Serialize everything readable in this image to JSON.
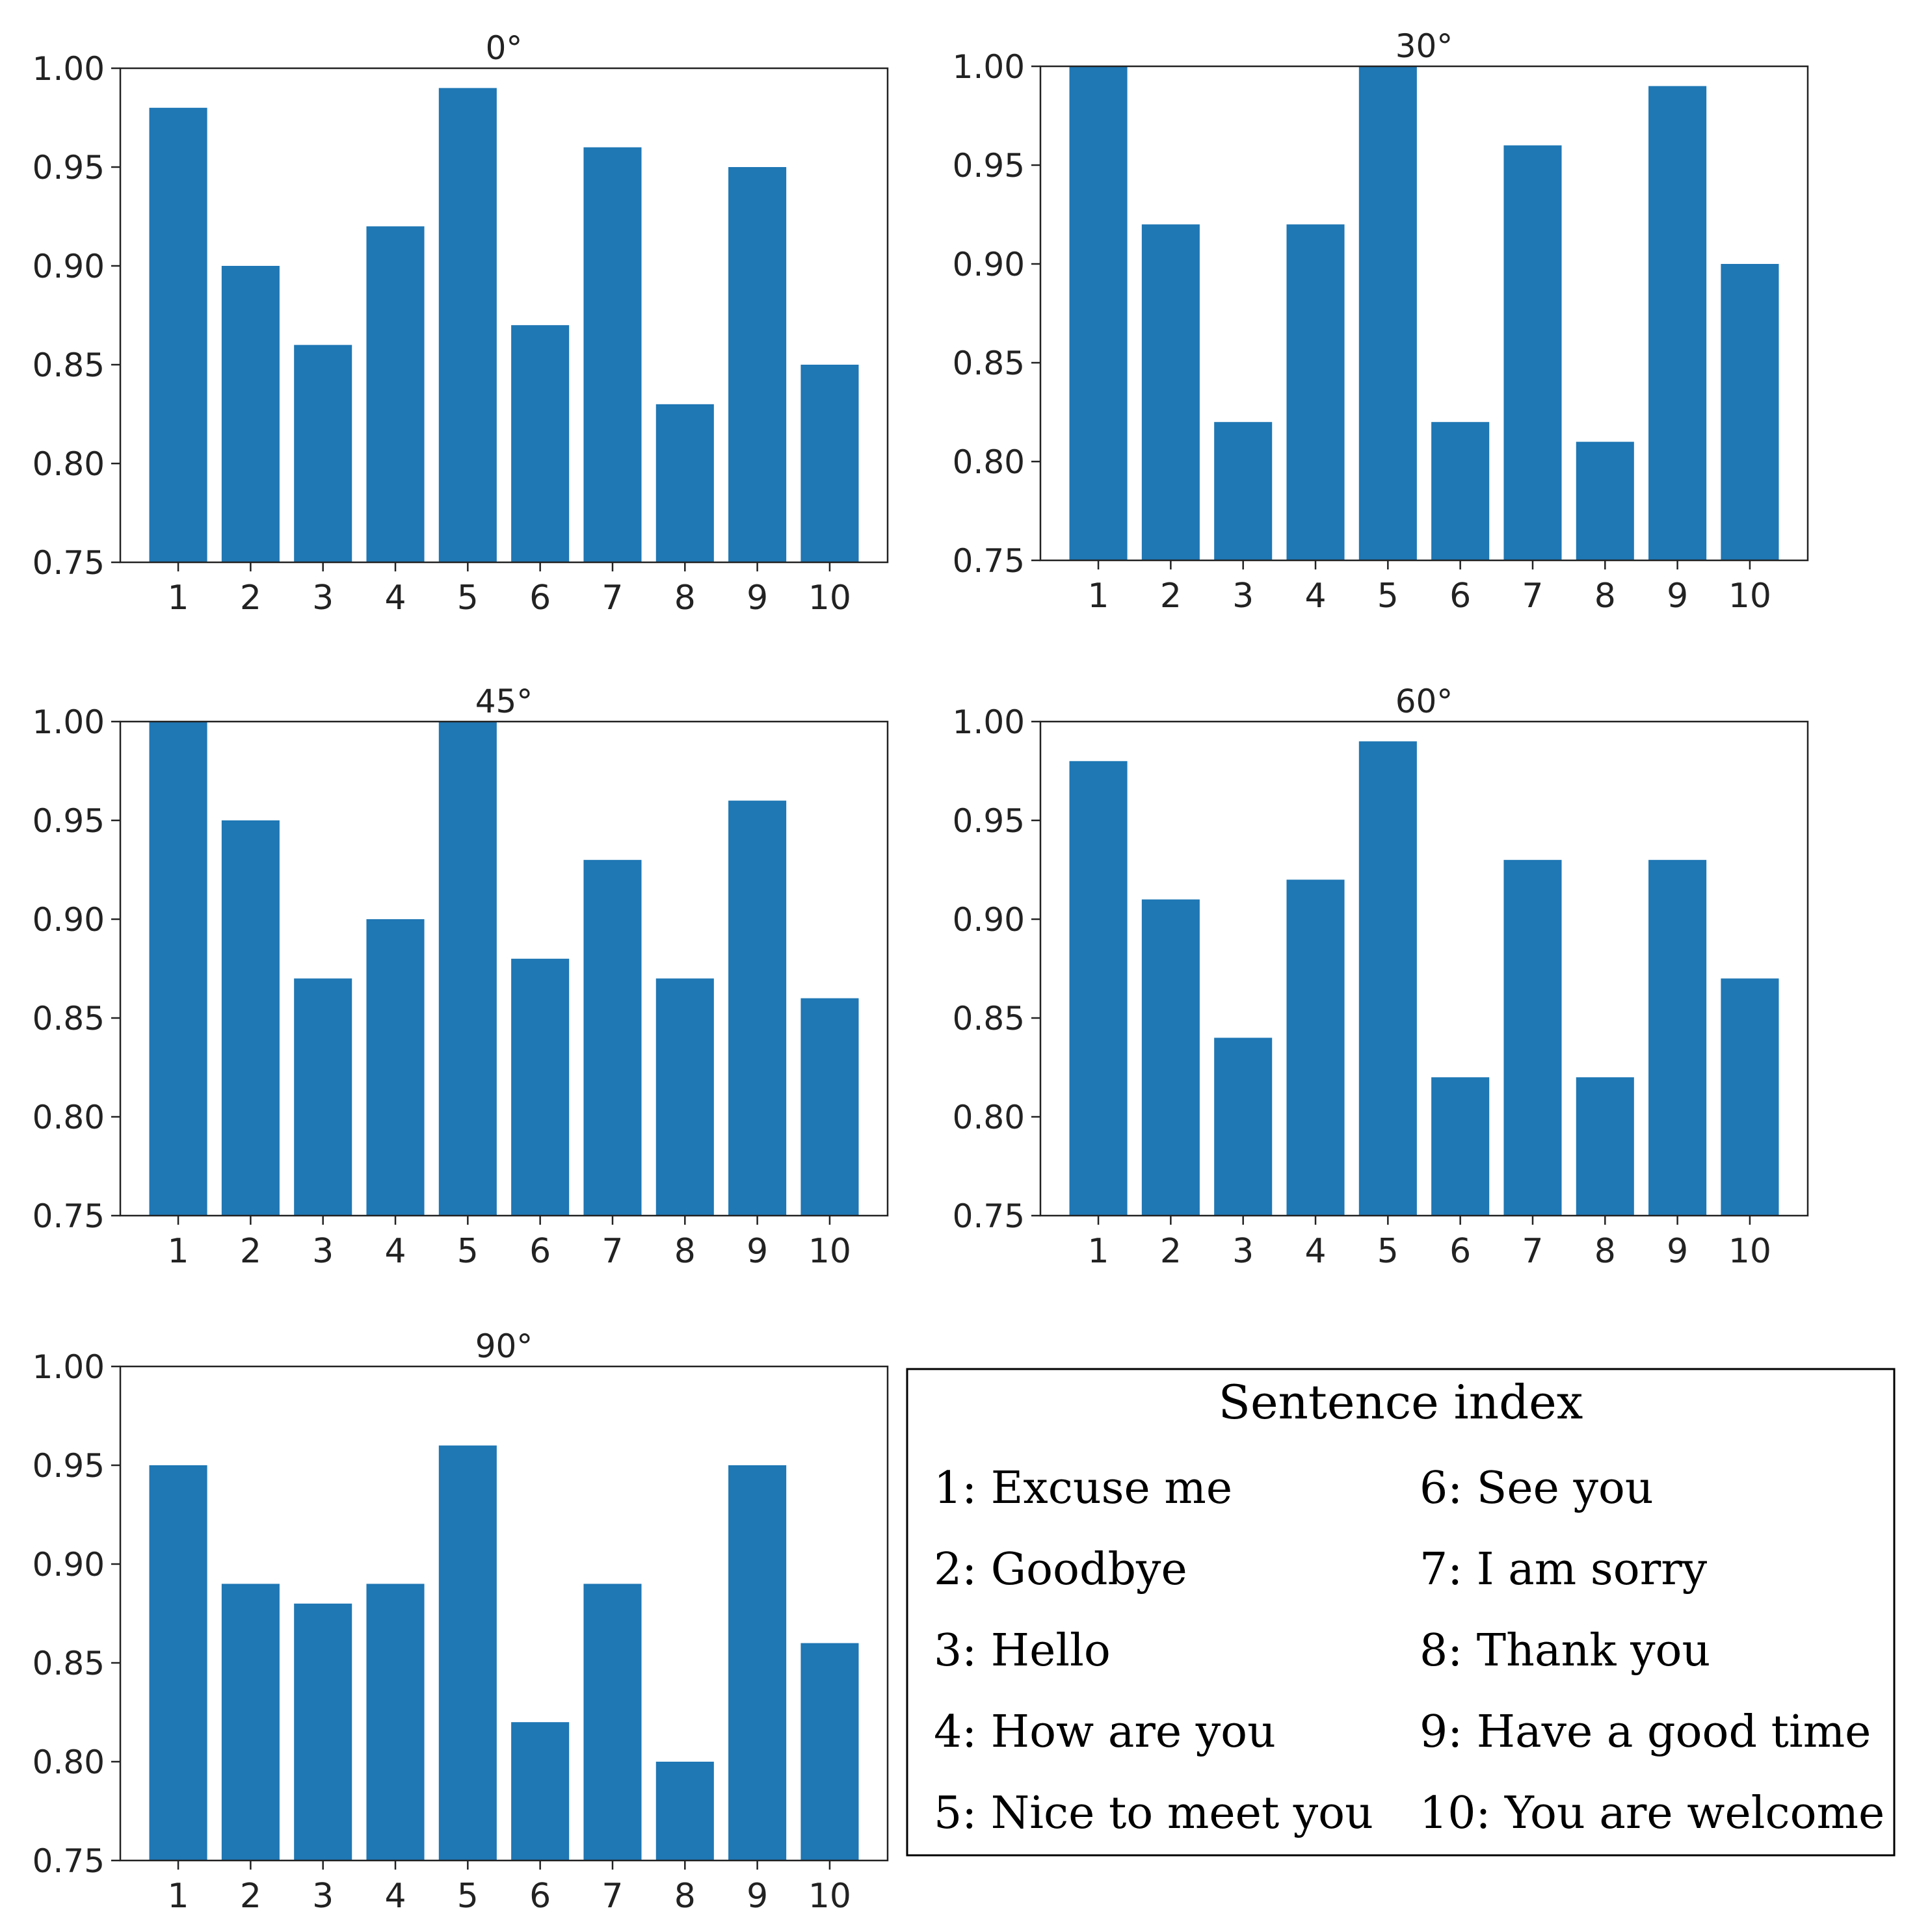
{
  "chart_data": [
    {
      "type": "bar",
      "title": "0°",
      "categories": [
        "1",
        "2",
        "3",
        "4",
        "5",
        "6",
        "7",
        "8",
        "9",
        "10"
      ],
      "values": [
        0.98,
        0.9,
        0.86,
        0.92,
        0.99,
        0.87,
        0.96,
        0.83,
        0.95,
        0.85
      ],
      "ylim": [
        0.75,
        1.0
      ],
      "yticks": [
        "0.75",
        "0.80",
        "0.85",
        "0.90",
        "0.95",
        "1.00"
      ],
      "color": "#1f77b4"
    },
    {
      "type": "bar",
      "title": "30°",
      "categories": [
        "1",
        "2",
        "3",
        "4",
        "5",
        "6",
        "7",
        "8",
        "9",
        "10"
      ],
      "values": [
        1.0,
        0.92,
        0.82,
        0.92,
        1.0,
        0.82,
        0.96,
        0.81,
        0.99,
        0.9
      ],
      "ylim": [
        0.75,
        1.0
      ],
      "yticks": [
        "0.75",
        "0.80",
        "0.85",
        "0.90",
        "0.95",
        "1.00"
      ],
      "color": "#1f77b4"
    },
    {
      "type": "bar",
      "title": "45°",
      "categories": [
        "1",
        "2",
        "3",
        "4",
        "5",
        "6",
        "7",
        "8",
        "9",
        "10"
      ],
      "values": [
        1.0,
        0.95,
        0.87,
        0.9,
        1.0,
        0.88,
        0.93,
        0.87,
        0.96,
        0.86
      ],
      "ylim": [
        0.75,
        1.0
      ],
      "yticks": [
        "0.75",
        "0.80",
        "0.85",
        "0.90",
        "0.95",
        "1.00"
      ],
      "color": "#1f77b4"
    },
    {
      "type": "bar",
      "title": "60°",
      "categories": [
        "1",
        "2",
        "3",
        "4",
        "5",
        "6",
        "7",
        "8",
        "9",
        "10"
      ],
      "values": [
        0.98,
        0.91,
        0.84,
        0.92,
        0.99,
        0.82,
        0.93,
        0.82,
        0.93,
        0.87
      ],
      "ylim": [
        0.75,
        1.0
      ],
      "yticks": [
        "0.75",
        "0.80",
        "0.85",
        "0.90",
        "0.95",
        "1.00"
      ],
      "color": "#1f77b4"
    },
    {
      "type": "bar",
      "title": "90°",
      "categories": [
        "1",
        "2",
        "3",
        "4",
        "5",
        "6",
        "7",
        "8",
        "9",
        "10"
      ],
      "values": [
        0.95,
        0.89,
        0.88,
        0.89,
        0.96,
        0.82,
        0.89,
        0.8,
        0.95,
        0.86
      ],
      "ylim": [
        0.75,
        1.0
      ],
      "yticks": [
        "0.75",
        "0.80",
        "0.85",
        "0.90",
        "0.95",
        "1.00"
      ],
      "color": "#1f77b4"
    }
  ],
  "legend": {
    "title": "Sentence index",
    "items": [
      "1: Excuse me",
      "2: Goodbye",
      "3: Hello",
      "4: How are you",
      "5: Nice to meet you",
      "6: See you",
      "7: I am sorry",
      "8: Thank you",
      "9: Have a good time",
      "10: You are welcome"
    ]
  }
}
